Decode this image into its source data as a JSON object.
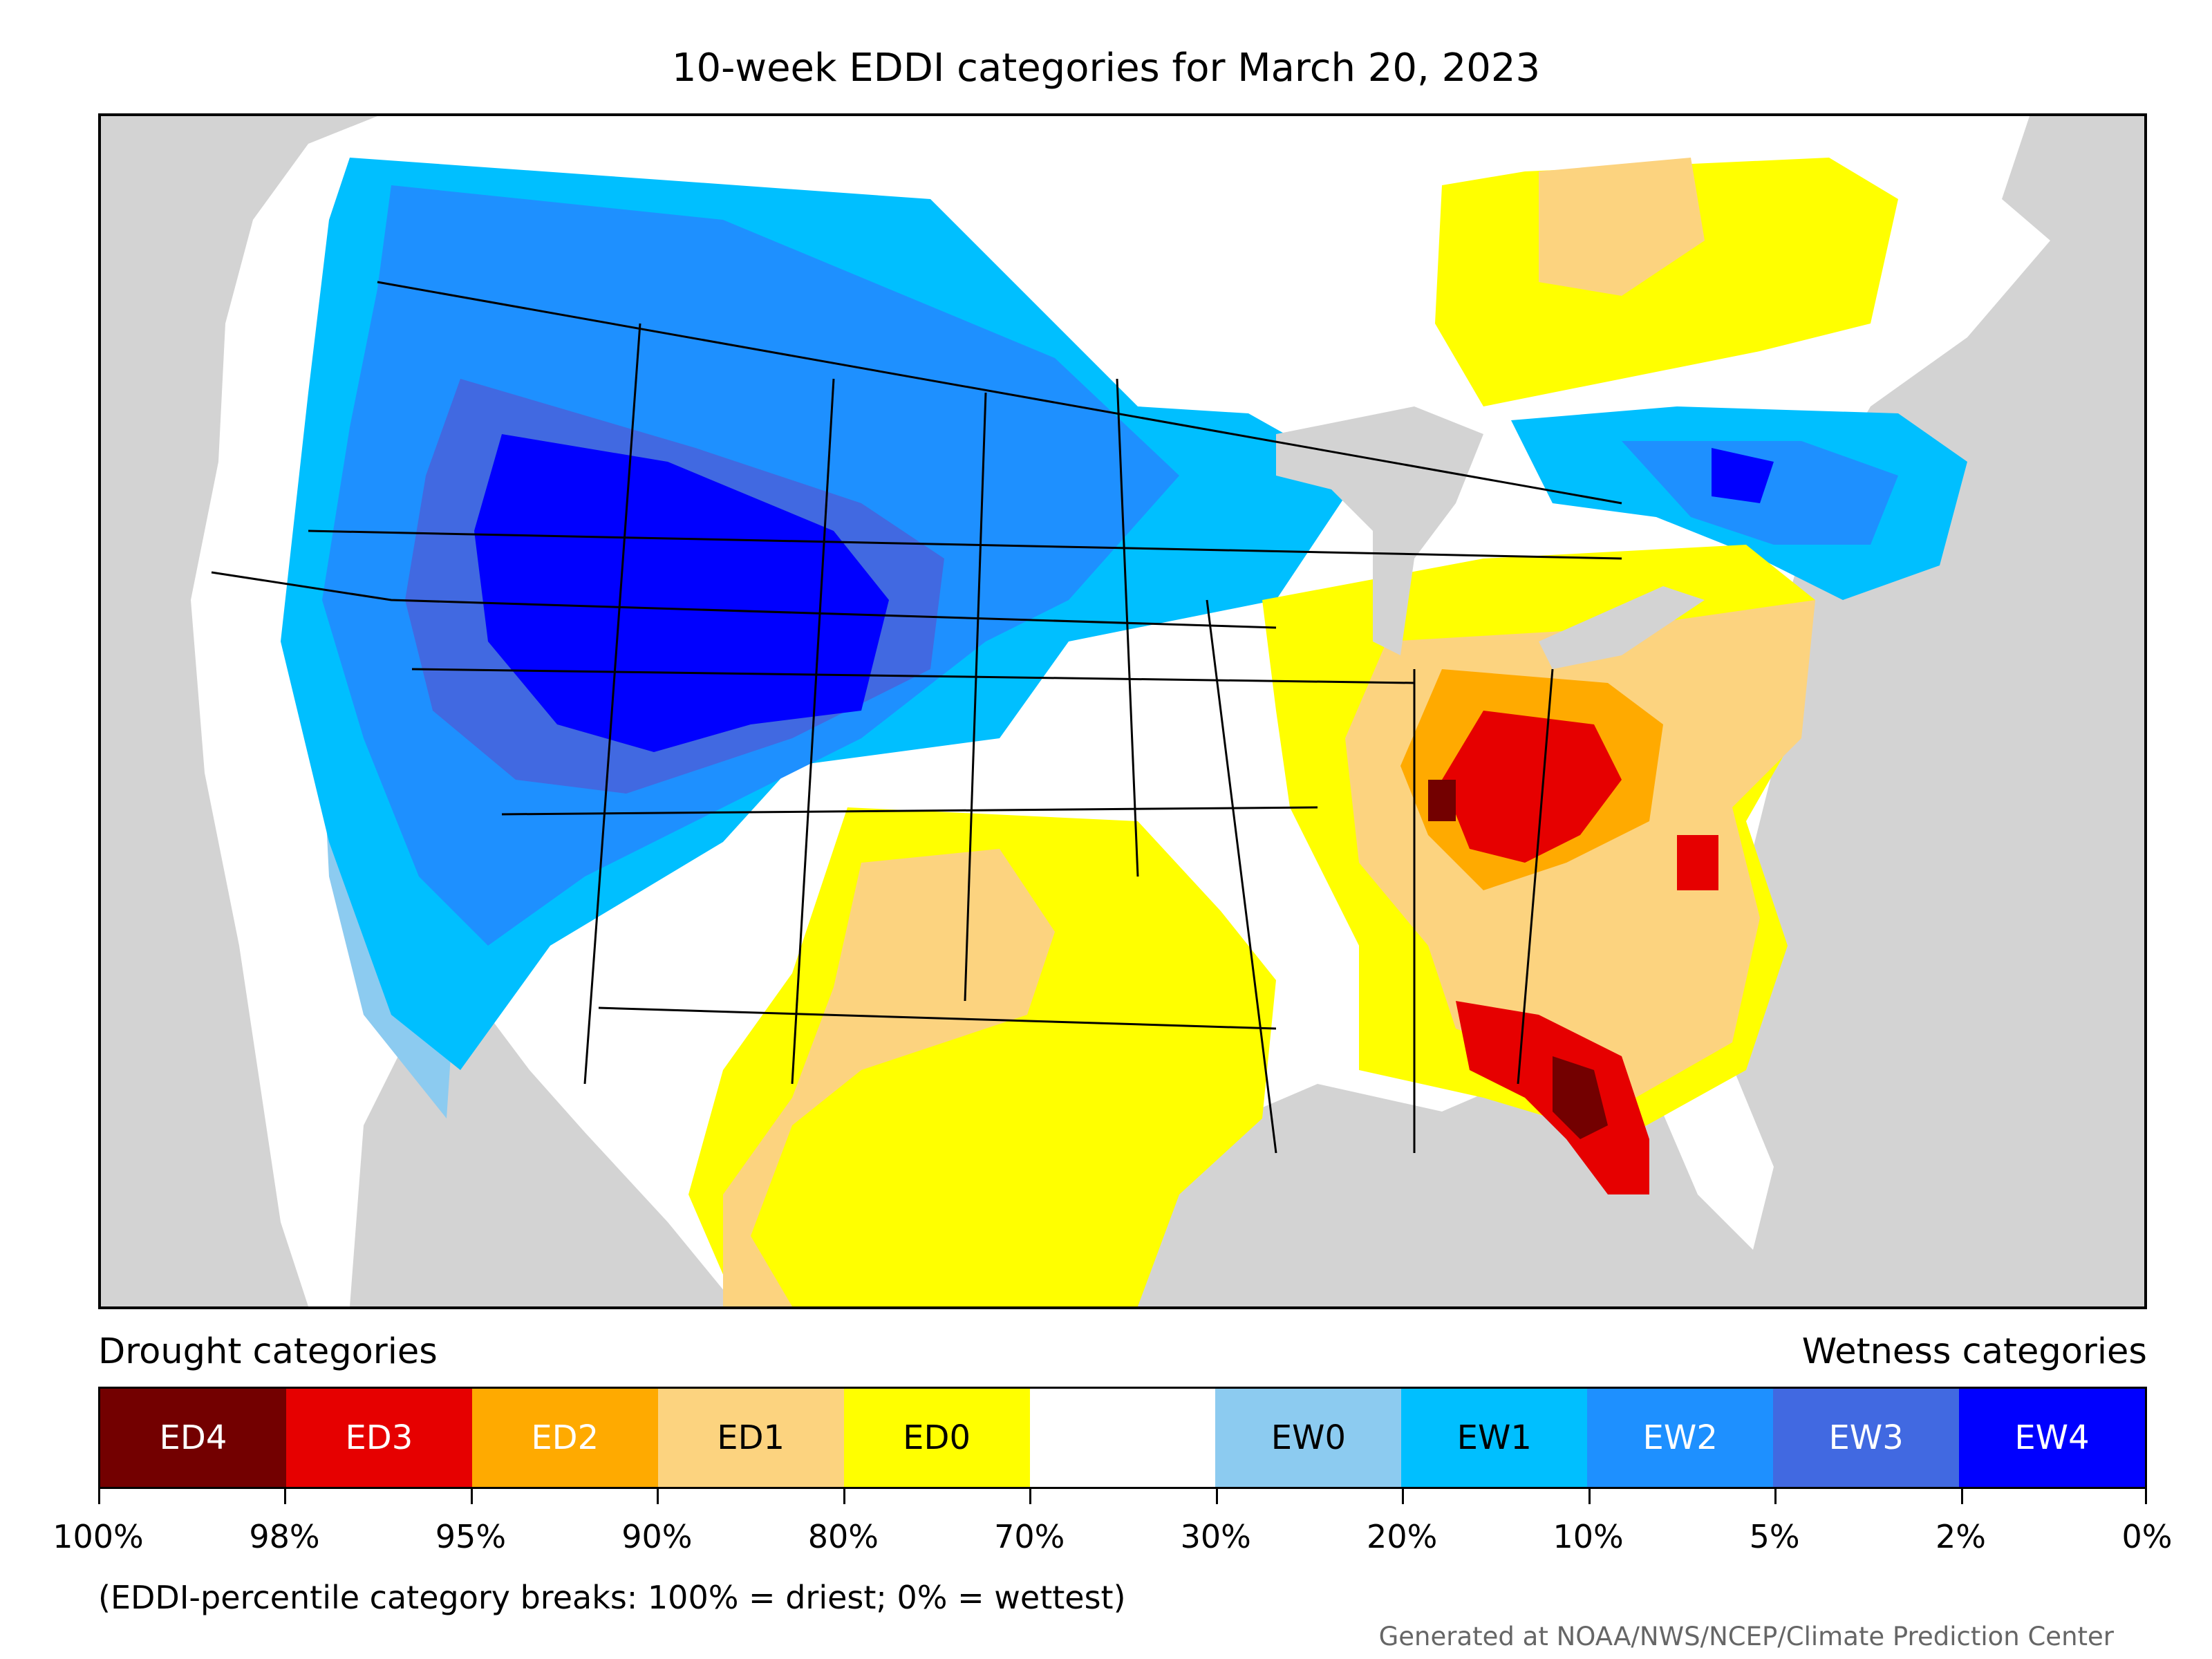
{
  "title": "10-week EDDI categories for March 20, 2023",
  "legend": {
    "left_heading": "Drought categories",
    "right_heading": "Wetness categories",
    "categories": [
      {
        "label": "ED4",
        "color": "#730000",
        "text_color": "#ffffff"
      },
      {
        "label": "ED3",
        "color": "#e60000",
        "text_color": "#ffffff"
      },
      {
        "label": "ED2",
        "color": "#ffaa00",
        "text_color": "#ffffff"
      },
      {
        "label": "ED1",
        "color": "#fcd37f",
        "text_color": "#000000"
      },
      {
        "label": "ED0",
        "color": "#ffff00",
        "text_color": "#000000"
      },
      {
        "label": "",
        "color": "#ffffff",
        "text_color": "#000000"
      },
      {
        "label": "EW0",
        "color": "#8ccbf0",
        "text_color": "#000000"
      },
      {
        "label": "EW1",
        "color": "#00bfff",
        "text_color": "#000000"
      },
      {
        "label": "EW2",
        "color": "#1e90ff",
        "text_color": "#ffffff"
      },
      {
        "label": "EW3",
        "color": "#4169e1",
        "text_color": "#ffffff"
      },
      {
        "label": "EW4",
        "color": "#0000ff",
        "text_color": "#ffffff"
      }
    ],
    "tick_labels": [
      "100%",
      "98%",
      "95%",
      "90%",
      "80%",
      "70%",
      "30%",
      "20%",
      "10%",
      "5%",
      "2%",
      "0%"
    ],
    "note": "(EDDI-percentile category breaks: 100% = driest; 0% = wettest)"
  },
  "credit": "Generated at NOAA/NWS/NCEP/Climate Prediction Center"
}
